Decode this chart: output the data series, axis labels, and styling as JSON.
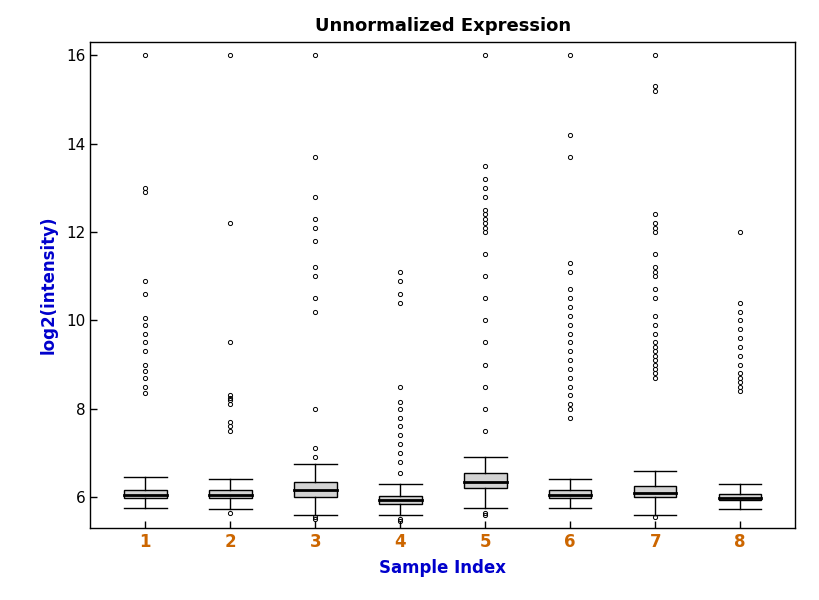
{
  "title": "Unnormalized Expression",
  "xlabel": "Sample Index",
  "ylabel": "log2(intensity)",
  "x_labels": [
    "1",
    "2",
    "3",
    "4",
    "5",
    "6",
    "7",
    "8"
  ],
  "x_label_color": "#cc6600",
  "ylabel_color": "#0000cc",
  "xlabel_color": "#0000cc",
  "title_color": "#000000",
  "ylim": [
    5.3,
    16.3
  ],
  "yticks": [
    6,
    8,
    10,
    12,
    14,
    16
  ],
  "background_color": "#ffffff",
  "boxes": [
    {
      "sample": 1,
      "q1": 5.97,
      "median": 6.05,
      "q3": 6.17,
      "whisker_low": 5.75,
      "whisker_high": 6.45,
      "fliers_high": [
        8.35,
        8.5,
        8.7,
        8.85,
        9.0,
        9.3,
        9.5,
        9.7,
        9.9,
        10.05,
        10.6,
        10.9,
        12.9,
        13.0,
        16.0
      ],
      "fliers_low": []
    },
    {
      "sample": 2,
      "q1": 5.97,
      "median": 6.04,
      "q3": 6.15,
      "whisker_low": 5.72,
      "whisker_high": 6.42,
      "fliers_high": [
        8.1,
        8.2,
        8.25,
        8.3,
        7.5,
        7.6,
        7.7,
        9.5,
        12.2,
        16.0
      ],
      "fliers_low": [
        5.65
      ]
    },
    {
      "sample": 3,
      "q1": 6.0,
      "median": 6.15,
      "q3": 6.35,
      "whisker_low": 5.6,
      "whisker_high": 6.75,
      "fliers_high": [
        6.9,
        7.1,
        8.0,
        10.2,
        10.5,
        11.0,
        11.2,
        11.8,
        12.1,
        12.3,
        12.8,
        13.7,
        16.0
      ],
      "fliers_low": [
        5.55,
        5.5
      ]
    },
    {
      "sample": 4,
      "q1": 5.84,
      "median": 5.93,
      "q3": 6.02,
      "whisker_low": 5.6,
      "whisker_high": 6.3,
      "fliers_high": [
        6.55,
        6.8,
        7.0,
        7.2,
        7.4,
        7.6,
        7.8,
        8.0,
        8.15,
        8.5,
        10.4,
        10.6,
        10.9,
        11.1
      ],
      "fliers_low": [
        5.5,
        5.45
      ]
    },
    {
      "sample": 5,
      "q1": 6.2,
      "median": 6.35,
      "q3": 6.55,
      "whisker_low": 5.75,
      "whisker_high": 6.9,
      "fliers_high": [
        7.5,
        8.0,
        8.5,
        9.0,
        9.5,
        10.0,
        10.5,
        11.0,
        11.5,
        12.0,
        12.1,
        12.2,
        12.3,
        12.4,
        12.5,
        12.8,
        13.0,
        13.2,
        13.5,
        16.0
      ],
      "fliers_low": [
        5.65,
        5.6
      ]
    },
    {
      "sample": 6,
      "q1": 5.97,
      "median": 6.05,
      "q3": 6.15,
      "whisker_low": 5.75,
      "whisker_high": 6.4,
      "fliers_high": [
        7.8,
        8.0,
        8.1,
        8.3,
        8.5,
        8.7,
        8.9,
        9.1,
        9.3,
        9.5,
        9.7,
        9.9,
        10.1,
        10.3,
        10.5,
        10.7,
        11.1,
        11.3,
        13.7,
        14.2,
        16.0
      ],
      "fliers_low": []
    },
    {
      "sample": 7,
      "q1": 6.0,
      "median": 6.1,
      "q3": 6.25,
      "whisker_low": 5.6,
      "whisker_high": 6.6,
      "fliers_high": [
        8.7,
        8.8,
        8.9,
        9.0,
        9.1,
        9.2,
        9.3,
        9.4,
        9.5,
        9.7,
        9.9,
        10.1,
        10.5,
        10.7,
        11.0,
        11.1,
        11.2,
        11.5,
        12.0,
        12.1,
        12.2,
        12.4,
        15.2,
        15.3,
        16.0
      ],
      "fliers_low": [
        5.55
      ]
    },
    {
      "sample": 8,
      "q1": 5.93,
      "median": 5.99,
      "q3": 6.08,
      "whisker_low": 5.73,
      "whisker_high": 6.3,
      "fliers_high": [
        8.4,
        8.5,
        8.6,
        8.7,
        8.8,
        9.0,
        9.2,
        9.4,
        9.6,
        9.8,
        10.0,
        10.2,
        10.4,
        12.0
      ],
      "fliers_low": []
    }
  ]
}
